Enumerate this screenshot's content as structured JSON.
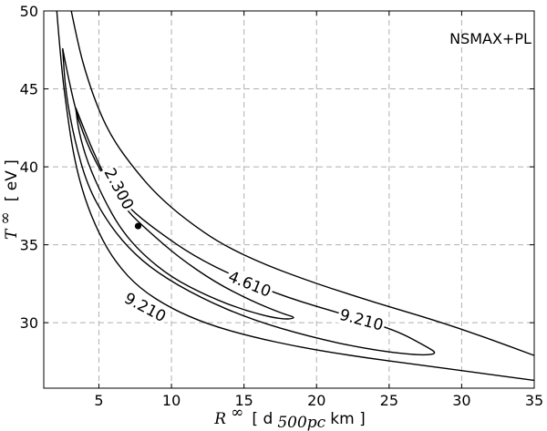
{
  "chart_data": {
    "type": "contour",
    "title": "",
    "annotation": "NSMAX+PL",
    "xlabel": {
      "symbol": "R",
      "superscript": "∞",
      "unit_prefix": "[ d",
      "unit_subscript": "500pc",
      "unit_suffix": " km ]"
    },
    "ylabel": {
      "symbol": "T",
      "superscript": "∞",
      "unit": "[ eV ]"
    },
    "xlim": [
      1.2,
      35
    ],
    "ylim": [
      25.8,
      50
    ],
    "xticks": [
      5,
      10,
      15,
      20,
      25,
      30,
      35
    ],
    "yticks": [
      30,
      35,
      40,
      45,
      50
    ],
    "grid": true,
    "best_fit": {
      "x": 7.7,
      "y": 36.2
    },
    "contours": [
      {
        "level": 2.3,
        "label": "2.300",
        "points": [
          [
            3.4,
            43.8
          ],
          [
            3.9,
            42.6
          ],
          [
            4.6,
            41.0
          ],
          [
            5.6,
            39.0
          ],
          [
            6.9,
            37.2
          ],
          [
            8.5,
            35.8
          ],
          [
            10.5,
            34.2
          ],
          [
            13.0,
            32.6
          ],
          [
            15.5,
            31.4
          ],
          [
            17.6,
            30.6
          ],
          [
            18.7,
            30.3
          ],
          [
            17.5,
            30.2
          ],
          [
            15.0,
            30.8
          ],
          [
            12.5,
            31.7
          ],
          [
            10.0,
            32.9
          ],
          [
            8.0,
            34.4
          ],
          [
            6.5,
            36.0
          ],
          [
            5.3,
            38.0
          ],
          [
            4.2,
            40.3
          ],
          [
            3.6,
            42.3
          ],
          [
            3.4,
            43.8
          ]
        ]
      },
      {
        "level": 4.61,
        "label": "4.610",
        "points": [
          [
            2.5,
            47.6
          ],
          [
            3.2,
            44.2
          ],
          [
            4.1,
            41.6
          ],
          [
            5.4,
            39.2
          ],
          [
            7.0,
            37.4
          ],
          [
            9.0,
            35.9
          ],
          [
            11.5,
            34.3
          ],
          [
            14.5,
            32.9
          ],
          [
            18.0,
            31.6
          ],
          [
            22.0,
            30.5
          ],
          [
            25.5,
            29.5
          ],
          [
            27.5,
            28.5
          ],
          [
            28.4,
            28.0
          ],
          [
            27.0,
            27.9
          ],
          [
            23.5,
            28.3
          ],
          [
            19.5,
            29.1
          ],
          [
            15.5,
            30.2
          ],
          [
            12.0,
            31.6
          ],
          [
            9.0,
            33.2
          ],
          [
            7.0,
            34.8
          ],
          [
            5.5,
            36.6
          ],
          [
            4.2,
            38.8
          ],
          [
            3.3,
            41.8
          ],
          [
            2.7,
            44.8
          ],
          [
            2.5,
            47.6
          ]
        ]
      },
      {
        "level": 9.21,
        "label": "9.210",
        "points": [
          [
            3.1,
            50.0
          ],
          [
            3.6,
            47.7
          ],
          [
            4.2,
            45.7
          ],
          [
            5.0,
            43.6
          ],
          [
            6.0,
            41.7
          ],
          [
            7.5,
            39.8
          ],
          [
            9.0,
            38.2
          ],
          [
            11.0,
            36.6
          ],
          [
            13.5,
            35.0
          ],
          [
            16.5,
            33.7
          ],
          [
            20.0,
            32.5
          ],
          [
            24.0,
            31.3
          ],
          [
            28.0,
            30.2
          ],
          [
            31.5,
            29.1
          ],
          [
            35.0,
            27.9
          ]
        ]
      },
      {
        "level": 9.21,
        "label": "9.210",
        "points": [
          [
            2.1,
            50.0
          ],
          [
            2.4,
            46.5
          ],
          [
            2.8,
            43.5
          ],
          [
            3.3,
            40.5
          ],
          [
            4.0,
            38.0
          ],
          [
            5.0,
            35.7
          ],
          [
            6.2,
            33.8
          ],
          [
            7.8,
            32.2
          ],
          [
            10.0,
            30.9
          ],
          [
            12.5,
            29.9
          ],
          [
            15.5,
            29.1
          ],
          [
            19.0,
            28.4
          ],
          [
            23.0,
            27.8
          ],
          [
            27.0,
            27.3
          ],
          [
            31.0,
            26.8
          ],
          [
            35.0,
            26.3
          ]
        ]
      }
    ],
    "contour_labels": [
      {
        "text": "2.300",
        "x": 6.4,
        "y": 38.6,
        "angle": 62
      },
      {
        "text": "4.610",
        "x": 15.4,
        "y": 32.5,
        "angle": 22
      },
      {
        "text": "9.210",
        "x": 23.1,
        "y": 30.2,
        "angle": 15
      },
      {
        "text": "9.210",
        "x": 8.2,
        "y": 31.0,
        "angle": 28
      }
    ]
  }
}
